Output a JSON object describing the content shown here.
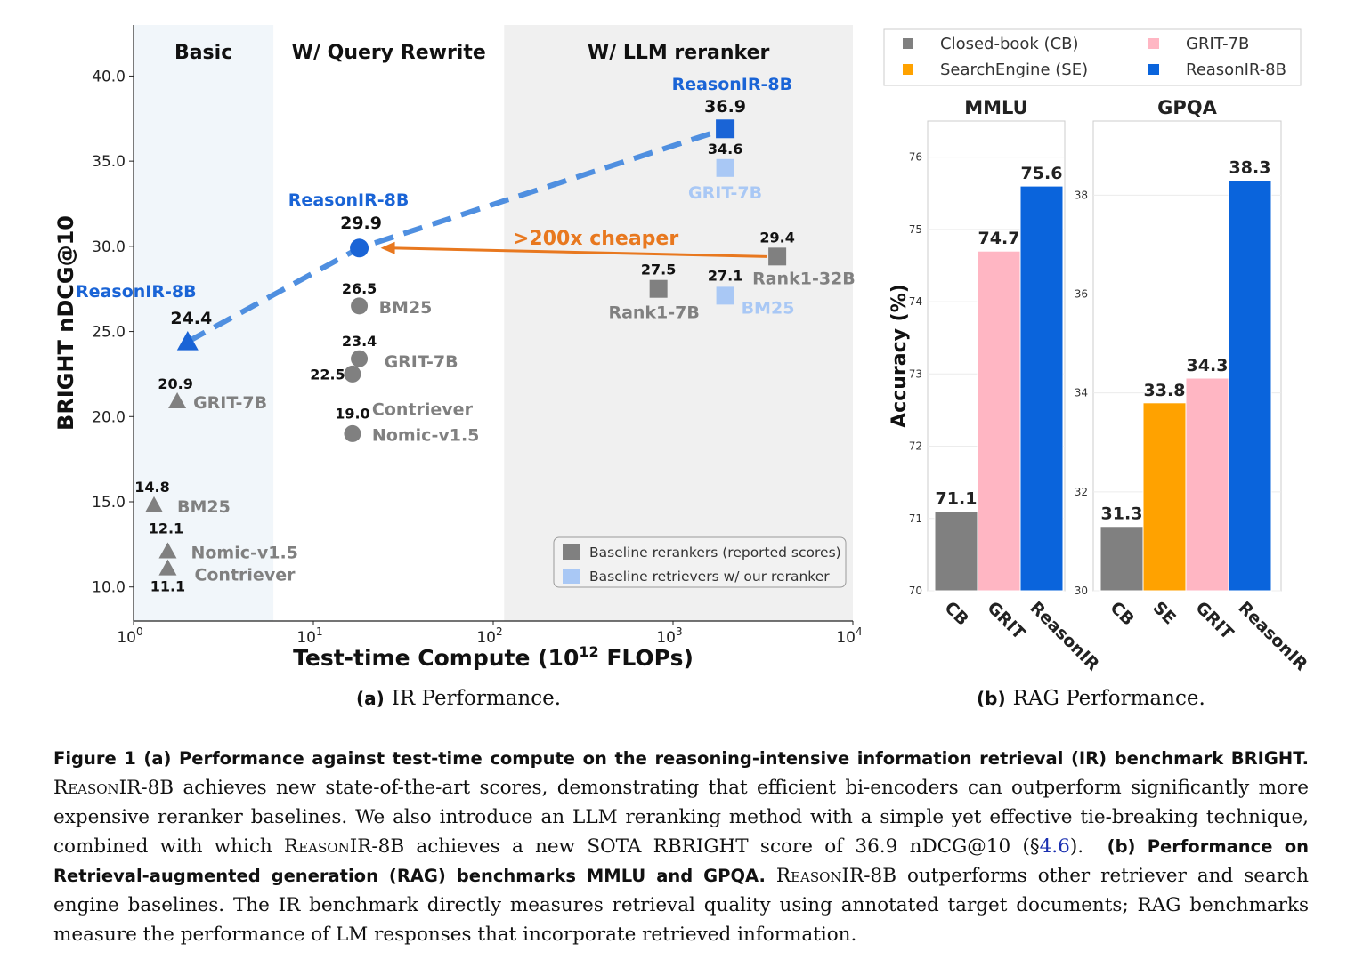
{
  "chart_data": [
    {
      "type": "scatter",
      "panel": "a",
      "ylabel": "BRIGHT nDCG@10",
      "xlabel": "Test-time Compute (10^12 FLOPs)",
      "xlabel_main": "Test-time Compute (10",
      "xlabel_sup": "12",
      "xlabel_tail": " FLOPs)",
      "xscale": "log",
      "xlim": [
        1,
        10000
      ],
      "ylim": [
        8,
        43
      ],
      "yticks": [
        "10.0",
        "15.0",
        "20.0",
        "25.0",
        "30.0",
        "35.0",
        "40.0"
      ],
      "ytick_values": [
        10,
        15,
        20,
        25,
        30,
        35,
        40
      ],
      "xticks": [
        {
          "value": 1,
          "base": "10",
          "exp": "0"
        },
        {
          "value": 10,
          "base": "10",
          "exp": "1"
        },
        {
          "value": 100,
          "base": "10",
          "exp": "2"
        },
        {
          "value": 1000,
          "base": "10",
          "exp": "3"
        },
        {
          "value": 10000,
          "base": "10",
          "exp": "4"
        }
      ],
      "regions": [
        {
          "label": "Basic",
          "x_range": [
            1,
            6
          ],
          "color": "#f1f6fa"
        },
        {
          "label": "W/ Query Rewrite",
          "x_range": [
            6,
            115
          ],
          "color": "#ffffff"
        },
        {
          "label": "W/ LLM reranker",
          "x_range": [
            115,
            10000
          ],
          "color": "#f0f0f0"
        }
      ],
      "points": [
        {
          "name": "ReasonIR-8B",
          "x": 2.0,
          "y": 24.4,
          "value_label": "24.4",
          "marker": "triangle",
          "color": "#1a64d6",
          "group": "reasonir"
        },
        {
          "name": "GRIT-7B",
          "x": 1.75,
          "y": 20.9,
          "value_label": "20.9",
          "marker": "triangle",
          "color": "#808080",
          "group": "baseline"
        },
        {
          "name": "BM25",
          "x": 1.3,
          "y": 14.8,
          "value_label": "14.8",
          "marker": "triangle",
          "color": "#808080",
          "group": "baseline"
        },
        {
          "name": "Nomic-v1.5",
          "x": 1.55,
          "y": 12.1,
          "value_label": "12.1",
          "marker": "triangle",
          "color": "#808080",
          "group": "baseline"
        },
        {
          "name": "Contriever",
          "x": 1.55,
          "y": 11.1,
          "value_label": "11.1",
          "marker": "triangle",
          "color": "#808080",
          "group": "baseline"
        },
        {
          "name": "ReasonIR-8B",
          "x": 18,
          "y": 29.9,
          "value_label": "29.9",
          "marker": "circle",
          "color": "#1a64d6",
          "group": "reasonir"
        },
        {
          "name": "BM25",
          "x": 18,
          "y": 26.5,
          "value_label": "26.5",
          "marker": "circle",
          "color": "#808080",
          "group": "baseline"
        },
        {
          "name": "GRIT-7B",
          "x": 18,
          "y": 23.4,
          "value_label": "23.4",
          "marker": "circle",
          "color": "#808080",
          "group": "baseline"
        },
        {
          "name": "Contriever",
          "x": 16.5,
          "y": 22.5,
          "value_label": "22.5",
          "marker": "circle",
          "color": "#808080",
          "group": "baseline"
        },
        {
          "name": "Nomic-v1.5",
          "x": 16.5,
          "y": 19.0,
          "value_label": "19.0",
          "marker": "circle",
          "color": "#808080",
          "group": "baseline"
        },
        {
          "name": "ReasonIR-8B",
          "x": 1950,
          "y": 36.9,
          "value_label": "36.9",
          "marker": "square",
          "color": "#1a64d6",
          "group": "reasonir"
        },
        {
          "name": "GRIT-7B",
          "x": 1950,
          "y": 34.6,
          "value_label": "34.6",
          "marker": "square",
          "color": "#a9c8f5",
          "group": "ours-reranker"
        },
        {
          "name": "Rank1-32B",
          "x": 3800,
          "y": 29.4,
          "value_label": "29.4",
          "marker": "square",
          "color": "#808080",
          "group": "reported"
        },
        {
          "name": "Rank1-7B",
          "x": 830,
          "y": 27.5,
          "value_label": "27.5",
          "marker": "square",
          "color": "#808080",
          "group": "reported"
        },
        {
          "name": "BM25",
          "x": 1950,
          "y": 27.1,
          "value_label": "27.1",
          "marker": "square",
          "color": "#a9c8f5",
          "group": "ours-reranker"
        }
      ],
      "trend_line": {
        "points": [
          [
            2.0,
            24.4
          ],
          [
            18,
            29.9
          ],
          [
            1950,
            36.9
          ]
        ],
        "color": "#4f8fe0",
        "style": "dashed"
      },
      "annotation": {
        "text": ">200x cheaper",
        "from": [
          3800,
          29.4
        ],
        "to": [
          18,
          29.9
        ],
        "color": "#e8781f"
      },
      "legend": {
        "placement": "lower-right",
        "entries": [
          {
            "label": "Baseline rerankers (reported scores)",
            "color": "#808080"
          },
          {
            "label": "Baseline retrievers w/ our reranker",
            "color": "#a9c8f5"
          }
        ]
      }
    },
    {
      "type": "bar",
      "panel": "b",
      "ylabel": "Accuracy (%)",
      "legend": {
        "placement": "top",
        "entries": [
          {
            "label": "Closed-book (CB)",
            "color": "#808080"
          },
          {
            "label": "GRIT-7B",
            "color": "#ffb6c3"
          },
          {
            "label": "SearchEngine (SE)",
            "color": "#ffa200"
          },
          {
            "label": "ReasonIR-8B",
            "color": "#0a64dc"
          }
        ]
      },
      "subplots": [
        {
          "title": "MMLU",
          "ylim": [
            70,
            76.5
          ],
          "yticks": [
            "70",
            "71",
            "72",
            "73",
            "74",
            "75",
            "76"
          ],
          "ytick_values": [
            70,
            71,
            72,
            73,
            74,
            75,
            76
          ],
          "categories": [
            "CB",
            "GRIT",
            "ReasonIR"
          ],
          "values": [
            71.1,
            74.7,
            75.6
          ],
          "value_labels": [
            "71.1",
            "74.7",
            "75.6"
          ],
          "colors": [
            "#808080",
            "#ffb6c3",
            "#0a64dc"
          ]
        },
        {
          "title": "GPQA",
          "ylim": [
            30,
            39.5
          ],
          "yticks": [
            "30",
            "32",
            "34",
            "36",
            "38"
          ],
          "ytick_values": [
            30,
            32,
            34,
            36,
            38
          ],
          "categories": [
            "CB",
            "SE",
            "GRIT",
            "ReasonIR"
          ],
          "values": [
            31.3,
            33.8,
            34.3,
            38.3
          ],
          "value_labels": [
            "31.3",
            "33.8",
            "34.3",
            "38.3"
          ],
          "colors": [
            "#808080",
            "#ffa200",
            "#ffb6c3",
            "#0a64dc"
          ]
        }
      ]
    }
  ],
  "subcaptions": {
    "a_label": "(a)",
    "a_text": "IR Performance.",
    "b_label": "(b)",
    "b_text": "RAG Performance."
  },
  "caption": {
    "p1_bold": "Figure 1  (a) Performance against test-time compute on the reasoning-intensive information retrieval (IR) benchmark BRIGHT.",
    "p2_sc": "ReasonIR",
    "p2_text": "-8B achieves new state-of-the-art scores, demonstrating that efficient bi-encoders can outperform significantly more expensive reranker baselines. We also introduce an LLM reranking method with a simple yet effective tie-breaking technique, combined with which ",
    "p3_sc": "ReasonIR",
    "p3_text": "-8B achieves a new SOTA RBRIGHT score of 36.9 nDCG@10 (§",
    "p3_ref": "4.6",
    "p3_end": ").",
    "p4_bold": "(b) Performance on Retrieval-augmented generation (RAG) benchmarks MMLU and GPQA.",
    "p5_sc": "ReasonIR",
    "p5_text": "-8B outperforms other retriever and search engine baselines. The IR benchmark directly measures retrieval quality using annotated target documents; RAG benchmarks measure the performance of LM responses that incorporate retrieved information."
  }
}
